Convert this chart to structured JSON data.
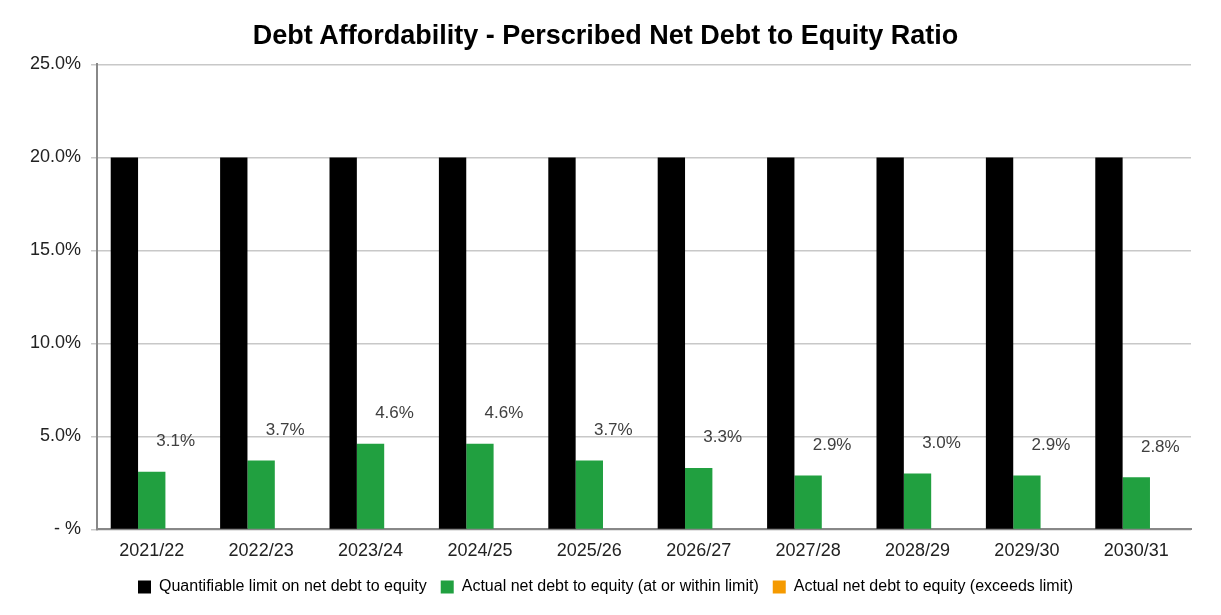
{
  "chart_data": {
    "type": "bar",
    "title": "Debt Affordability - Perscribed Net Debt to Equity Ratio",
    "categories": [
      "2021/22",
      "2022/23",
      "2023/24",
      "2024/25",
      "2025/26",
      "2026/27",
      "2027/28",
      "2028/29",
      "2029/30",
      "2030/31"
    ],
    "series": [
      {
        "name": "Quantifiable limit on net debt to equity",
        "color": "#000000",
        "values": [
          20,
          20,
          20,
          20,
          20,
          20,
          20,
          20,
          20,
          20
        ]
      },
      {
        "name": "Actual net debt to equity (at or within limit)",
        "color": "#21a040",
        "values": [
          3.1,
          3.7,
          4.6,
          4.6,
          3.7,
          3.3,
          2.9,
          3.0,
          2.9,
          2.8
        ],
        "value_labels": [
          "3.1%",
          "3.7%",
          "4.6%",
          "4.6%",
          "3.7%",
          "3.3%",
          "2.9%",
          "3.0%",
          "2.9%",
          "2.8%"
        ]
      },
      {
        "name": "Actual net debt to equity (exceeds limit)",
        "color": "#f59a00",
        "values": [
          null,
          null,
          null,
          null,
          null,
          null,
          null,
          null,
          null,
          null
        ]
      }
    ],
    "ylim": [
      0,
      25
    ],
    "yticks": [
      {
        "value": 0,
        "label": "- %"
      },
      {
        "value": 5,
        "label": "5.0%"
      },
      {
        "value": 10,
        "label": "10.0%"
      },
      {
        "value": 15,
        "label": "15.0%"
      },
      {
        "value": 20,
        "label": "20.0%"
      },
      {
        "value": 25,
        "label": "25.0%"
      }
    ],
    "grid": "y",
    "legend": "bottom"
  }
}
